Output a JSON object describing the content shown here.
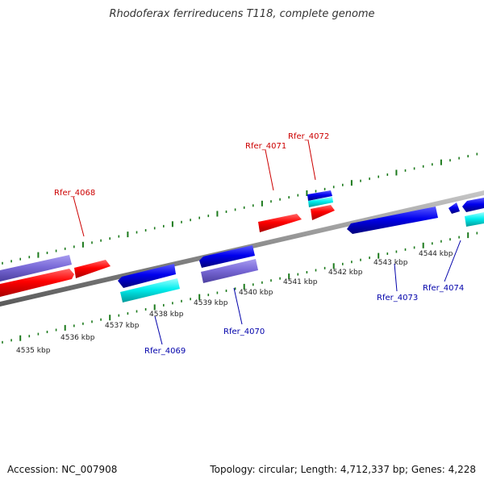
{
  "title": "Rhodoferax ferrireducens T118, complete genome",
  "footer": {
    "accession": "Accession: NC_007908",
    "topology": "Topology: circular; Length: 4,712,337 bp; Genes: 4,228"
  },
  "colors": {
    "backbone": "#8a8a8a",
    "ticks": "#1c7a1c",
    "forward_cds": "#ff0000",
    "reverse_cds": "#0000ee",
    "forward_misc": "#7a6ad8",
    "reverse_misc": "#00eeee",
    "label_forward": "#cc0000",
    "label_reverse": "#0000aa"
  },
  "scale_labels": [
    "4535 kbp",
    "4536 kbp",
    "4537 kbp",
    "4538 kbp",
    "4539 kbp",
    "4540 kbp",
    "4541 kbp",
    "4542 kbp",
    "4543 kbp",
    "4544 kbp"
  ],
  "gene_labels": [
    {
      "text": "Rfer_4068",
      "strand": "forward"
    },
    {
      "text": "Rfer_4071",
      "strand": "forward"
    },
    {
      "text": "Rfer_4072",
      "strand": "forward"
    },
    {
      "text": "Rfer_4069",
      "strand": "reverse"
    },
    {
      "text": "Rfer_4070",
      "strand": "reverse"
    },
    {
      "text": "Rfer_4073",
      "strand": "reverse"
    },
    {
      "text": "Rfer_4074",
      "strand": "reverse"
    }
  ]
}
